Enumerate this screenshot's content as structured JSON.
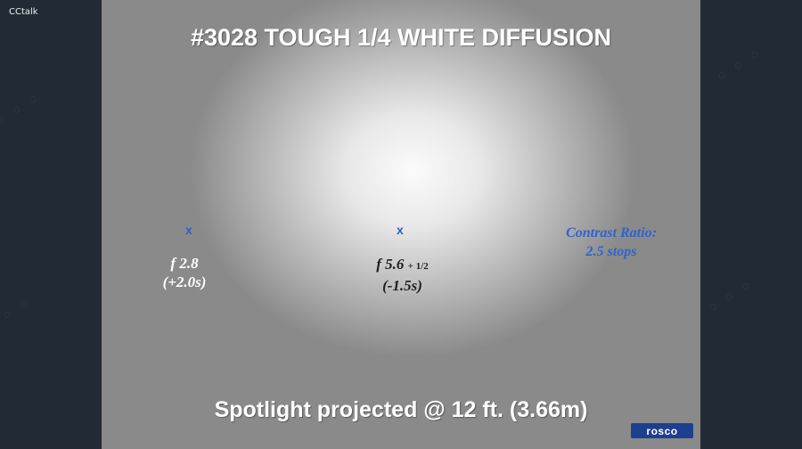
{
  "app": {
    "title": "CCtalk"
  },
  "slide": {
    "title": "#3028 TOUGH 1/4 WHITE DIFFUSION",
    "markers": [
      "x",
      "x"
    ],
    "left_reading": {
      "fstop": "f 2.8",
      "offset": "(+2.0s)"
    },
    "center_reading": {
      "fstop": "f 5.6",
      "fraction": "+ 1/2",
      "offset": "(-1.5s)"
    },
    "contrast": {
      "label": "Contrast Ratio:",
      "value": "2.5 stops"
    },
    "caption": "Spotlight projected @ 12 ft. (3.66m)",
    "logo": "rosco"
  },
  "colors": {
    "background": "#222b35",
    "marker_blue": "#2f5fc7",
    "logo_blue": "#1c3f8f"
  }
}
